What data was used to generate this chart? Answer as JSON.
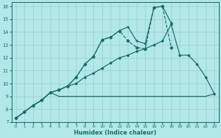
{
  "xlabel": "Humidex (Indice chaleur)",
  "background_color": "#b2e8e8",
  "grid_color": "#c8dede",
  "line_color": "#1a6b6b",
  "xlim": [
    -0.5,
    23.5
  ],
  "ylim": [
    7,
    16.3
  ],
  "yticks": [
    7,
    8,
    9,
    10,
    11,
    12,
    13,
    14,
    15,
    16
  ],
  "xticks": [
    0,
    1,
    2,
    3,
    4,
    5,
    6,
    7,
    8,
    9,
    10,
    11,
    12,
    13,
    14,
    15,
    16,
    17,
    18,
    19,
    20,
    21,
    22,
    23
  ],
  "line1": {
    "x": [
      0,
      1,
      2,
      3,
      4,
      5,
      6,
      7,
      8,
      9,
      10,
      11,
      12,
      13,
      14,
      15,
      16,
      17,
      18,
      19,
      20,
      21,
      22,
      23
    ],
    "y": [
      7.3,
      7.8,
      8.3,
      8.7,
      9.3,
      9.0,
      9.0,
      9.0,
      9.0,
      9.0,
      9.0,
      9.0,
      9.0,
      9.0,
      9.0,
      9.0,
      9.0,
      9.0,
      9.0,
      9.0,
      9.0,
      9.0,
      9.0,
      9.2
    ]
  },
  "line2": {
    "x": [
      0,
      1,
      2,
      3,
      4,
      5,
      6,
      7,
      8,
      9,
      10,
      11,
      12,
      13,
      14,
      15,
      16,
      17,
      18,
      19,
      20,
      21,
      22,
      23
    ],
    "y": [
      7.3,
      7.8,
      8.3,
      8.7,
      9.3,
      9.5,
      9.8,
      10.0,
      10.5,
      10.8,
      11.2,
      11.6,
      12.0,
      12.2,
      12.5,
      12.7,
      13.0,
      13.3,
      14.6,
      12.2,
      12.2,
      11.5,
      10.5,
      9.2
    ]
  },
  "line3": {
    "x": [
      0,
      1,
      2,
      3,
      4,
      5,
      6,
      7,
      8,
      9,
      10,
      11,
      12,
      13,
      14,
      15,
      16,
      17,
      18
    ],
    "y": [
      7.3,
      7.8,
      8.3,
      8.7,
      9.3,
      9.5,
      9.8,
      10.5,
      11.5,
      12.1,
      13.4,
      13.6,
      14.1,
      14.4,
      13.3,
      13.1,
      15.9,
      16.0,
      14.7
    ]
  },
  "line4": {
    "x": [
      0,
      1,
      2,
      3,
      4,
      5,
      6,
      7,
      8,
      9,
      10,
      11,
      12,
      13,
      14,
      15,
      16,
      17,
      18
    ],
    "y": [
      7.3,
      7.8,
      8.3,
      8.7,
      9.3,
      9.5,
      9.8,
      10.5,
      11.5,
      12.1,
      13.4,
      13.6,
      14.1,
      13.3,
      12.8,
      12.7,
      15.9,
      16.0,
      12.8
    ]
  }
}
